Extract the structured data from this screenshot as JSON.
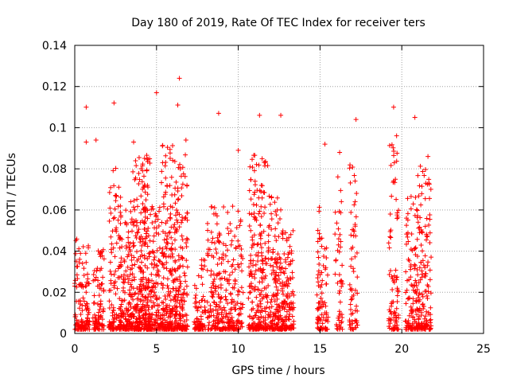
{
  "chart_data": {
    "type": "scatter",
    "title": "Day 180 of 2019, Rate Of TEC Index for receiver ters",
    "xlabel": "GPS time / hours",
    "ylabel": "ROTI / TECUs",
    "xlim": [
      0,
      25
    ],
    "ylim": [
      0,
      0.14
    ],
    "x_ticks": [
      "0",
      "5",
      "10",
      "15",
      "20",
      "25"
    ],
    "y_ticks": [
      "0",
      "0.02",
      "0.04",
      "0.06",
      "0.08",
      "0.1",
      "0.12",
      "0.14"
    ],
    "grid": true,
    "marker": "plus",
    "series": [
      {
        "name": "ROTI",
        "color": "#ff0000",
        "notable_points": [
          {
            "x": 6.4,
            "y": 0.124
          },
          {
            "x": 5.0,
            "y": 0.117
          },
          {
            "x": 2.4,
            "y": 0.112
          },
          {
            "x": 0.7,
            "y": 0.11
          },
          {
            "x": 6.3,
            "y": 0.111
          },
          {
            "x": 19.5,
            "y": 0.11
          },
          {
            "x": 20.8,
            "y": 0.105
          },
          {
            "x": 17.2,
            "y": 0.104
          },
          {
            "x": 12.6,
            "y": 0.106
          },
          {
            "x": 8.8,
            "y": 0.107
          },
          {
            "x": 11.3,
            "y": 0.106
          },
          {
            "x": 1.3,
            "y": 0.094
          },
          {
            "x": 0.7,
            "y": 0.093
          },
          {
            "x": 3.6,
            "y": 0.093
          },
          {
            "x": 10.0,
            "y": 0.089
          },
          {
            "x": 15.3,
            "y": 0.092
          },
          {
            "x": 16.2,
            "y": 0.088
          },
          {
            "x": 21.6,
            "y": 0.086
          },
          {
            "x": 6.8,
            "y": 0.094
          }
        ],
        "clusters": [
          {
            "x_range": [
              0.0,
              0.9
            ],
            "y_max": 0.045,
            "density": 1.0
          },
          {
            "x_range": [
              1.1,
              1.8
            ],
            "y_max": 0.04,
            "density": 0.9
          },
          {
            "x_range": [
              2.1,
              2.7
            ],
            "y_max": 0.08,
            "density": 1.2
          },
          {
            "x_range": [
              2.7,
              3.5
            ],
            "y_max": 0.065,
            "density": 1.4
          },
          {
            "x_range": [
              3.5,
              4.6
            ],
            "y_max": 0.085,
            "density": 2.0
          },
          {
            "x_range": [
              4.6,
              5.3
            ],
            "y_max": 0.06,
            "density": 1.3
          },
          {
            "x_range": [
              5.3,
              6.2
            ],
            "y_max": 0.09,
            "density": 1.8
          },
          {
            "x_range": [
              6.2,
              6.9
            ],
            "y_max": 0.085,
            "density": 1.5
          },
          {
            "x_range": [
              7.3,
              8.0
            ],
            "y_max": 0.035,
            "density": 0.8
          },
          {
            "x_range": [
              8.1,
              8.8
            ],
            "y_max": 0.06,
            "density": 1.0
          },
          {
            "x_range": [
              8.8,
              9.6
            ],
            "y_max": 0.06,
            "density": 1.0
          },
          {
            "x_range": [
              9.6,
              10.3
            ],
            "y_max": 0.06,
            "density": 0.9
          },
          {
            "x_range": [
              10.6,
              11.8
            ],
            "y_max": 0.085,
            "density": 1.4
          },
          {
            "x_range": [
              11.8,
              12.6
            ],
            "y_max": 0.065,
            "density": 1.3
          },
          {
            "x_range": [
              12.6,
              13.4
            ],
            "y_max": 0.048,
            "density": 1.2
          },
          {
            "x_range": [
              14.8,
              15.5
            ],
            "y_max": 0.06,
            "density": 0.9
          },
          {
            "x_range": [
              15.9,
              16.4
            ],
            "y_max": 0.075,
            "density": 0.7
          },
          {
            "x_range": [
              16.8,
              17.3
            ],
            "y_max": 0.085,
            "density": 0.9
          },
          {
            "x_range": [
              19.2,
              19.8
            ],
            "y_max": 0.095,
            "density": 1.1
          },
          {
            "x_range": [
              20.2,
              20.9
            ],
            "y_max": 0.065,
            "density": 1.0
          },
          {
            "x_range": [
              20.9,
              21.8
            ],
            "y_max": 0.08,
            "density": 1.3
          }
        ]
      }
    ]
  }
}
